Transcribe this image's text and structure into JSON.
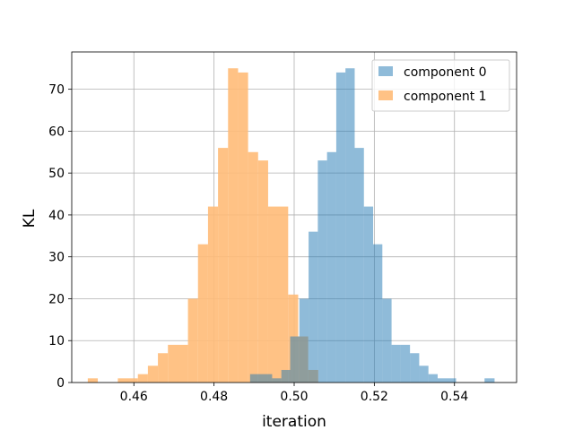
{
  "chart_data": {
    "type": "histogram",
    "title": "",
    "xlabel": "iteration",
    "ylabel": "KL",
    "xlim": [
      0.4445,
      0.5555
    ],
    "ylim": [
      0,
      78.9
    ],
    "xticks": [
      0.46,
      0.48,
      0.5,
      0.52,
      0.54
    ],
    "xtick_labels": [
      "0.46",
      "0.48",
      "0.50",
      "0.52",
      "0.54"
    ],
    "yticks": [
      0,
      10,
      20,
      30,
      40,
      50,
      60,
      70
    ],
    "ytick_labels": [
      "0",
      "10",
      "20",
      "30",
      "40",
      "50",
      "60",
      "70"
    ],
    "grid": true,
    "legend_position": "top-right",
    "series": [
      {
        "name": "component 1",
        "color": "#ffbb78",
        "alpha": 0.9,
        "bins": [
          [
            0.4485,
            0.451,
            1
          ],
          [
            0.456,
            0.461,
            1
          ],
          [
            0.461,
            0.4635,
            2
          ],
          [
            0.4635,
            0.466,
            4
          ],
          [
            0.466,
            0.4685,
            7
          ],
          [
            0.4685,
            0.4735,
            9
          ],
          [
            0.4735,
            0.476,
            20
          ],
          [
            0.476,
            0.4785,
            33
          ],
          [
            0.4785,
            0.481,
            42
          ],
          [
            0.481,
            0.4835,
            56
          ],
          [
            0.4835,
            0.486,
            75
          ],
          [
            0.486,
            0.4885,
            74
          ],
          [
            0.4885,
            0.491,
            55
          ],
          [
            0.491,
            0.4935,
            53
          ],
          [
            0.4935,
            0.4985,
            42
          ],
          [
            0.4985,
            0.501,
            21
          ],
          [
            0.501,
            0.5035,
            11
          ],
          [
            0.5035,
            0.506,
            3
          ]
        ]
      },
      {
        "name": "component 0",
        "color": "#1f77b4",
        "alpha": 0.5,
        "bins": [
          [
            0.489,
            0.4945,
            2
          ],
          [
            0.4945,
            0.4968,
            1
          ],
          [
            0.4968,
            0.499,
            3
          ],
          [
            0.499,
            0.5013,
            11
          ],
          [
            0.5013,
            0.5036,
            20
          ],
          [
            0.5036,
            0.5059,
            36
          ],
          [
            0.5059,
            0.5082,
            53
          ],
          [
            0.5082,
            0.5105,
            55
          ],
          [
            0.5105,
            0.5128,
            74
          ],
          [
            0.5128,
            0.5151,
            75
          ],
          [
            0.5151,
            0.5174,
            56
          ],
          [
            0.5174,
            0.5197,
            42
          ],
          [
            0.5197,
            0.522,
            33
          ],
          [
            0.522,
            0.5243,
            20
          ],
          [
            0.5243,
            0.5266,
            9
          ],
          [
            0.5266,
            0.5289,
            9
          ],
          [
            0.5289,
            0.5312,
            7
          ],
          [
            0.5312,
            0.5335,
            4
          ],
          [
            0.5335,
            0.5358,
            2
          ],
          [
            0.5358,
            0.5404,
            1
          ],
          [
            0.5475,
            0.55,
            1
          ]
        ]
      }
    ],
    "legend": [
      {
        "name": "component 0",
        "color": "#1f77b4",
        "alpha": 0.5
      },
      {
        "name": "component 1",
        "color": "#ffbb78",
        "alpha": 0.9
      }
    ]
  }
}
